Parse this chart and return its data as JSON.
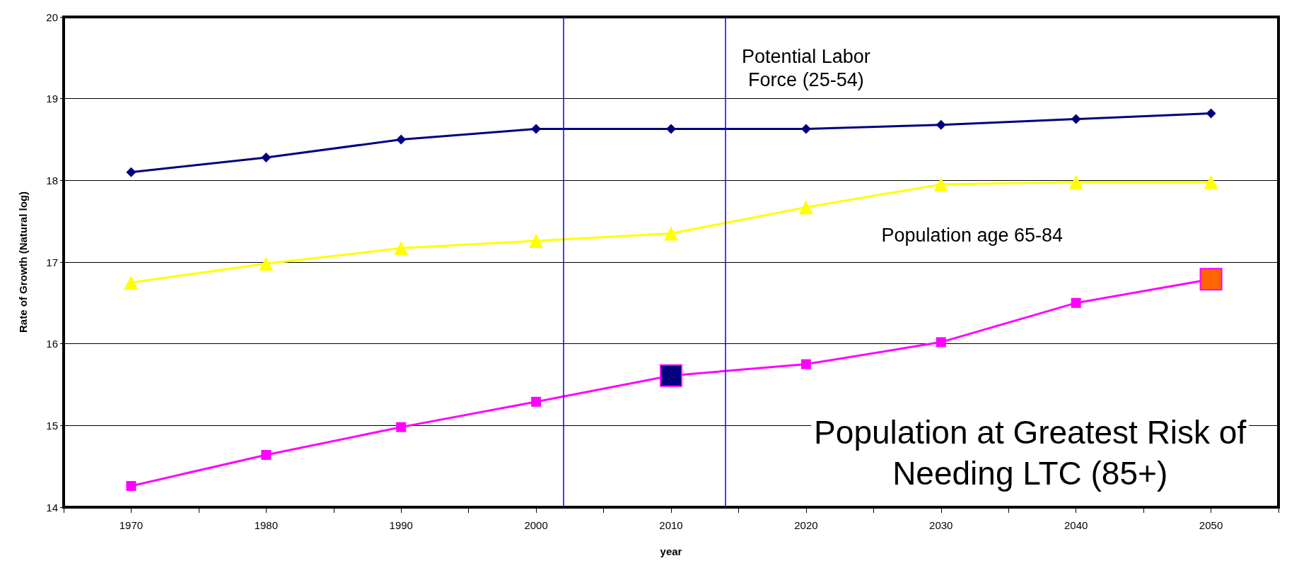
{
  "chart_data": {
    "type": "line",
    "xlabel": "year",
    "ylabel": "Rate of Growth (Natural log)",
    "x": [
      1970,
      1980,
      1990,
      2000,
      2010,
      2020,
      2030,
      2040,
      2050
    ],
    "xlim": [
      1965,
      2055
    ],
    "xticks": [
      {
        "value": 1965,
        "label": null
      },
      1970,
      {
        "value": 1975,
        "label": null
      },
      1980,
      {
        "value": 1985,
        "label": null
      },
      1990,
      {
        "value": 1995,
        "label": null
      },
      2000,
      {
        "value": 2005,
        "label": null
      },
      2010,
      {
        "value": 2015,
        "label": null
      },
      2020,
      {
        "value": 2025,
        "label": null
      },
      2030,
      {
        "value": 2035,
        "label": null
      },
      2040,
      {
        "value": 2045,
        "label": null
      },
      2050,
      {
        "value": 2055,
        "label": null
      }
    ],
    "ylim": [
      14,
      20
    ],
    "yticks": [
      14,
      15,
      16,
      17,
      18,
      19,
      20
    ],
    "grid": "y",
    "line_style": "solid",
    "series": [
      {
        "name": "Potential Labor\nForce (25-54)",
        "color": "#00007f",
        "marker": "diamond",
        "values": [
          18.1,
          18.28,
          18.5,
          18.63,
          18.63,
          18.63,
          18.68,
          18.75,
          18.82
        ]
      },
      {
        "name": "Population age 65-84",
        "color": "#ffff00",
        "marker": "triangle",
        "values": [
          16.75,
          16.98,
          17.17,
          17.26,
          17.35,
          17.67,
          17.95,
          17.98,
          17.98
        ]
      },
      {
        "name": "Population at Greatest Risk of\nNeeding LTC (85+)",
        "color": "#ff00ff",
        "marker": "square",
        "values": [
          14.26,
          14.64,
          14.98,
          15.29,
          15.61,
          15.75,
          16.02,
          16.5,
          16.79
        ],
        "colors": [
          "#ff00ff",
          "#ff00ff",
          "#ff00ff",
          "#ff00ff",
          "#00007f",
          "#ff00ff",
          "#ff00ff",
          "#ff00ff",
          "#ff6600"
        ]
      }
    ],
    "ref_lines": [
      {
        "axis": "x",
        "value": 2002,
        "color": "#0000ff"
      },
      {
        "axis": "x",
        "value": 2014,
        "color": "#0000ff"
      }
    ]
  }
}
